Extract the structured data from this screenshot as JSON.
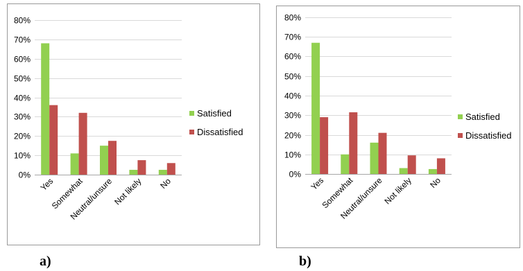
{
  "captions": [
    "a)",
    "b)"
  ],
  "colors": {
    "satisfied": "#92D050",
    "dissatisfied": "#C0504D",
    "grid": "#D9D9D9",
    "axis": "#A6A6A6"
  },
  "chart_data": [
    {
      "type": "bar",
      "categories": [
        "Yes",
        "Somewhat",
        "Neutral/unsure",
        "Not likely",
        "No"
      ],
      "ylim": [
        0,
        0.8
      ],
      "yticks": [
        "0%",
        "10%",
        "20%",
        "30%",
        "40%",
        "50%",
        "60%",
        "70%",
        "80%"
      ],
      "grid": true,
      "legend_position": "right",
      "series": [
        {
          "name": "Satisfied",
          "values": [
            0.68,
            0.11,
            0.15,
            0.025,
            0.025
          ]
        },
        {
          "name": "Dissatisfied",
          "values": [
            0.36,
            0.32,
            0.175,
            0.075,
            0.06
          ]
        }
      ]
    },
    {
      "type": "bar",
      "categories": [
        "Yes",
        "Somewhat",
        "Neutral/unsure",
        "Not likely",
        "No"
      ],
      "ylim": [
        0,
        0.8
      ],
      "yticks": [
        "0%",
        "10%",
        "20%",
        "30%",
        "40%",
        "50%",
        "60%",
        "70%",
        "80%"
      ],
      "grid": true,
      "legend_position": "right",
      "series": [
        {
          "name": "Satisfied",
          "values": [
            0.67,
            0.1,
            0.16,
            0.03,
            0.025
          ]
        },
        {
          "name": "Dissatisfied",
          "values": [
            0.29,
            0.315,
            0.21,
            0.095,
            0.08
          ]
        }
      ]
    }
  ]
}
